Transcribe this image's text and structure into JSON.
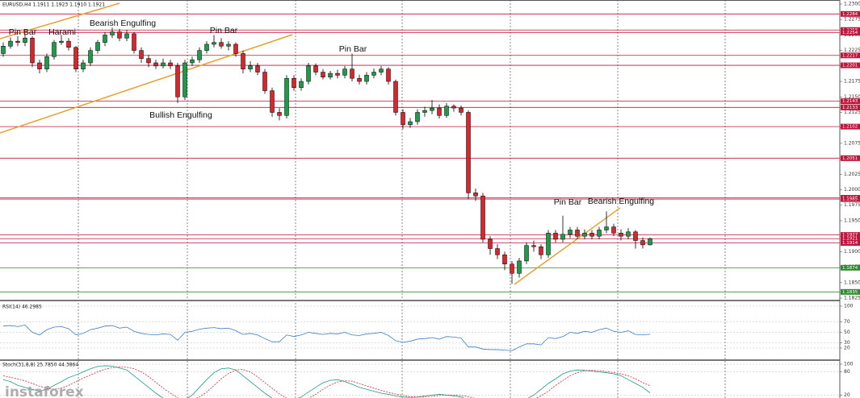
{
  "watermark": "instaforex",
  "chart_data": [
    {
      "type": "candlestick",
      "title": "EURUSD,H4  1.1911 1.1923 1.1910 1.1921",
      "up_color": "#1f9a4a",
      "down_color": "#d6262e",
      "open": [
        1.222,
        1.2232,
        1.224,
        1.2238,
        1.2245,
        1.2205,
        1.2195,
        1.2215,
        1.2238,
        1.224,
        1.223,
        1.2195,
        1.2205,
        1.2225,
        1.2238,
        1.225,
        1.2255,
        1.2245,
        1.2252,
        1.2225,
        1.2212,
        1.2205,
        1.22,
        1.2205,
        1.22,
        1.215,
        1.2205,
        1.221,
        1.2225,
        1.2235,
        1.2238,
        1.2232,
        1.2235,
        1.222,
        1.2195,
        1.22,
        1.219,
        1.216,
        1.2125,
        1.212,
        1.218,
        1.2165,
        1.2175,
        1.22,
        1.219,
        1.2182,
        1.2188,
        1.2185,
        1.2195,
        1.218,
        1.2175,
        1.2185,
        1.219,
        1.2195,
        1.2175,
        1.2125,
        1.2105,
        1.211,
        1.2125,
        1.2128,
        1.2132,
        1.212,
        1.2135,
        1.2132,
        1.2125,
        1.1995,
        1.199,
        1.192,
        1.1905,
        1.1895,
        1.188,
        1.1865,
        1.1885,
        1.191,
        1.1908,
        1.1895,
        1.193,
        1.192,
        1.1928,
        1.1935,
        1.1925,
        1.193,
        1.1925,
        1.1935,
        1.194,
        1.193,
        1.1925,
        1.1932,
        1.1918,
        1.1911
      ],
      "high": [
        1.2238,
        1.2246,
        1.2248,
        1.2252,
        1.2248,
        1.221,
        1.222,
        1.2242,
        1.225,
        1.2245,
        1.2232,
        1.221,
        1.223,
        1.2242,
        1.2255,
        1.2262,
        1.226,
        1.2258,
        1.2255,
        1.223,
        1.2218,
        1.221,
        1.2212,
        1.221,
        1.2205,
        1.221,
        1.2215,
        1.223,
        1.224,
        1.225,
        1.2245,
        1.224,
        1.2238,
        1.2225,
        1.2208,
        1.2205,
        1.2195,
        1.2165,
        1.2132,
        1.2185,
        1.2185,
        1.218,
        1.2205,
        1.2204,
        1.2195,
        1.2192,
        1.2194,
        1.22,
        1.222,
        1.2186,
        1.219,
        1.2196,
        1.22,
        1.2198,
        1.2178,
        1.213,
        1.2116,
        1.213,
        1.2134,
        1.2145,
        1.2138,
        1.214,
        1.2138,
        1.2136,
        1.2128,
        1.2002,
        1.1995,
        1.1925,
        1.1912,
        1.19,
        1.1885,
        1.189,
        1.1915,
        1.1918,
        1.1912,
        1.1935,
        1.1935,
        1.1958,
        1.194,
        1.194,
        1.1936,
        1.1935,
        1.194,
        1.1965,
        1.1945,
        1.1936,
        1.1938,
        1.1935,
        1.1923,
        1.1923
      ],
      "low": [
        1.2215,
        1.2228,
        1.2232,
        1.2232,
        1.2198,
        1.2188,
        1.219,
        1.221,
        1.2234,
        1.2225,
        1.219,
        1.219,
        1.22,
        1.222,
        1.2232,
        1.2245,
        1.224,
        1.224,
        1.222,
        1.2205,
        1.2198,
        1.2195,
        1.2196,
        1.2195,
        1.214,
        1.2145,
        1.22,
        1.2205,
        1.222,
        1.223,
        1.2228,
        1.2225,
        1.2215,
        1.2188,
        1.219,
        1.2185,
        1.2155,
        1.2118,
        1.2112,
        1.2115,
        1.216,
        1.216,
        1.217,
        1.2185,
        1.2178,
        1.2178,
        1.218,
        1.218,
        1.2175,
        1.217,
        1.217,
        1.218,
        1.2185,
        1.217,
        1.212,
        1.2098,
        1.21,
        1.2105,
        1.2118,
        1.2122,
        1.2115,
        1.2116,
        1.2126,
        1.212,
        1.1985,
        1.1982,
        1.1915,
        1.1895,
        1.1888,
        1.187,
        1.1848,
        1.1858,
        1.188,
        1.19,
        1.1888,
        1.189,
        1.1915,
        1.1915,
        1.1922,
        1.192,
        1.192,
        1.192,
        1.192,
        1.193,
        1.1925,
        1.1918,
        1.192,
        1.1905,
        1.1905,
        1.191
      ],
      "close": [
        1.2232,
        1.224,
        1.2238,
        1.2245,
        1.2205,
        1.2195,
        1.2215,
        1.2238,
        1.224,
        1.223,
        1.2195,
        1.2205,
        1.2225,
        1.2238,
        1.225,
        1.2255,
        1.2245,
        1.2252,
        1.2225,
        1.2212,
        1.2205,
        1.22,
        1.2205,
        1.22,
        1.215,
        1.2205,
        1.221,
        1.2225,
        1.2235,
        1.2238,
        1.2232,
        1.2235,
        1.222,
        1.2195,
        1.22,
        1.219,
        1.216,
        1.2125,
        1.212,
        1.218,
        1.2165,
        1.2175,
        1.22,
        1.219,
        1.2182,
        1.2188,
        1.2185,
        1.2195,
        1.218,
        1.2175,
        1.2185,
        1.219,
        1.2195,
        1.2175,
        1.2125,
        1.2105,
        1.211,
        1.2125,
        1.2128,
        1.2132,
        1.212,
        1.2135,
        1.2132,
        1.2125,
        1.1995,
        1.199,
        1.192,
        1.1905,
        1.1895,
        1.188,
        1.1865,
        1.1885,
        1.191,
        1.1908,
        1.1895,
        1.193,
        1.192,
        1.1928,
        1.1935,
        1.1925,
        1.193,
        1.1925,
        1.1935,
        1.194,
        1.193,
        1.1925,
        1.1932,
        1.1918,
        1.1911,
        1.1921
      ],
      "ylim": [
        1.1825,
        1.23
      ],
      "yticks": [
        {
          "value": 1.23,
          "label": "1.2300"
        },
        1.2275,
        {
          "value": 1.225,
          "label": "1.2250"
        },
        1.2225,
        {
          "value": 1.22,
          "label": "1.2200"
        },
        1.2175,
        {
          "value": 1.215,
          "label": "1.2150"
        },
        1.2125,
        {
          "value": 1.21,
          "label": "1.2100"
        },
        1.2075,
        {
          "value": 1.205,
          "label": "1.2050"
        },
        1.2025,
        {
          "value": 1.2,
          "label": "1.2000"
        },
        1.1975,
        {
          "value": 1.195,
          "label": "1.1950"
        },
        1.1925,
        {
          "value": 1.19,
          "label": "1.1900"
        },
        1.1875,
        {
          "value": 1.185,
          "label": "1.1850"
        },
        1.1825
      ],
      "levels": [
        {
          "value": 1.2284,
          "color": "#c0143c"
        },
        {
          "value": 1.2258,
          "color": "#c0143c"
        },
        {
          "value": 1.2254,
          "color": "#c0143c"
        },
        {
          "value": 1.2217,
          "color": "#c0143c"
        },
        {
          "value": 1.2201,
          "color": "#c0143c"
        },
        {
          "value": 1.2143,
          "color": "#c0143c"
        },
        {
          "value": 1.2133,
          "color": "#c0143c"
        },
        {
          "value": 1.2102,
          "color": "#c0143c"
        },
        {
          "value": 1.2051,
          "color": "#c0143c"
        },
        {
          "value": 1.1987,
          "color": "#c0143c"
        },
        {
          "value": 1.1985,
          "color": "#c0143c"
        },
        {
          "value": 1.1927,
          "color": "#c0143c"
        },
        {
          "value": 1.1921,
          "color": "#c0143c"
        },
        {
          "value": 1.1914,
          "color": "#c0143c"
        },
        {
          "value": 1.1874,
          "color": "#2e8b2e"
        },
        {
          "value": 1.1835,
          "color": "#2e8b2e"
        }
      ],
      "annotations": [
        "Pin Bar",
        "Harami",
        "Bearish Engulfing",
        "Bullish Engulfing",
        "Pin Bar",
        "Pin Bar",
        "Pin Bar",
        "Bearish Engulfing"
      ]
    },
    {
      "type": "line",
      "title": "RSI(14) 46.2985",
      "series": [
        {
          "color": "#3b7dc4",
          "values": [
            62,
            63,
            61,
            64,
            50,
            45,
            55,
            60,
            61,
            57,
            45,
            48,
            55,
            58,
            62,
            63,
            58,
            60,
            52,
            48,
            46,
            45,
            47,
            46,
            35,
            50,
            52,
            56,
            58,
            59,
            57,
            58,
            53,
            46,
            48,
            45,
            38,
            32,
            32,
            45,
            42,
            45,
            50,
            48,
            46,
            48,
            47,
            50,
            45,
            44,
            47,
            48,
            50,
            44,
            34,
            31,
            33,
            37,
            38,
            40,
            37,
            42,
            41,
            39,
            22,
            22,
            18,
            17,
            17,
            16,
            15,
            22,
            28,
            28,
            26,
            40,
            38,
            42,
            50,
            48,
            52,
            50,
            55,
            58,
            52,
            50,
            53,
            46,
            45,
            46.2985
          ]
        }
      ],
      "ylim": [
        0,
        100
      ],
      "yticks": [
        100,
        70,
        50,
        30,
        20
      ]
    },
    {
      "type": "line",
      "title": "Stoch(31,8,8) 25.7850 44.3864",
      "series": [
        {
          "color": "#1f9a8a",
          "values": [
            60,
            55,
            45,
            40,
            35,
            30,
            35,
            45,
            55,
            65,
            72,
            80,
            88,
            94,
            96,
            95,
            90,
            85,
            70,
            55,
            40,
            25,
            12,
            5,
            3,
            8,
            20,
            40,
            60,
            78,
            88,
            90,
            85,
            70,
            55,
            40,
            25,
            12,
            5,
            4,
            8,
            15,
            28,
            40,
            52,
            58,
            60,
            55,
            48,
            40,
            35,
            30,
            25,
            22,
            18,
            15,
            14,
            15,
            18,
            20,
            22,
            20,
            18,
            15,
            8,
            4,
            2,
            1,
            1,
            2,
            3,
            5,
            10,
            20,
            35,
            50,
            62,
            75,
            82,
            85,
            84,
            82,
            80,
            78,
            75,
            70,
            60,
            50,
            40,
            25.785
          ]
        },
        {
          "color": "#d6262e",
          "dashed": true,
          "values": [
            70,
            66,
            62,
            57,
            50,
            43,
            38,
            35,
            38,
            45,
            55,
            64,
            72,
            80,
            87,
            91,
            93,
            92,
            88,
            80,
            68,
            53,
            38,
            25,
            13,
            7,
            8,
            15,
            28,
            45,
            62,
            76,
            85,
            86,
            80,
            67,
            52,
            38,
            23,
            12,
            7,
            7,
            12,
            22,
            35,
            46,
            54,
            57,
            56,
            50,
            44,
            38,
            32,
            27,
            23,
            19,
            16,
            15,
            15,
            17,
            19,
            20,
            20,
            19,
            16,
            11,
            6,
            3,
            2,
            1,
            2,
            3,
            5,
            9,
            18,
            30,
            45,
            58,
            70,
            78,
            83,
            84,
            83,
            81,
            78,
            75,
            70,
            62,
            52,
            44.3864
          ]
        }
      ],
      "ylim": [
        0,
        100
      ],
      "yticks": [
        100,
        80,
        20
      ]
    }
  ]
}
